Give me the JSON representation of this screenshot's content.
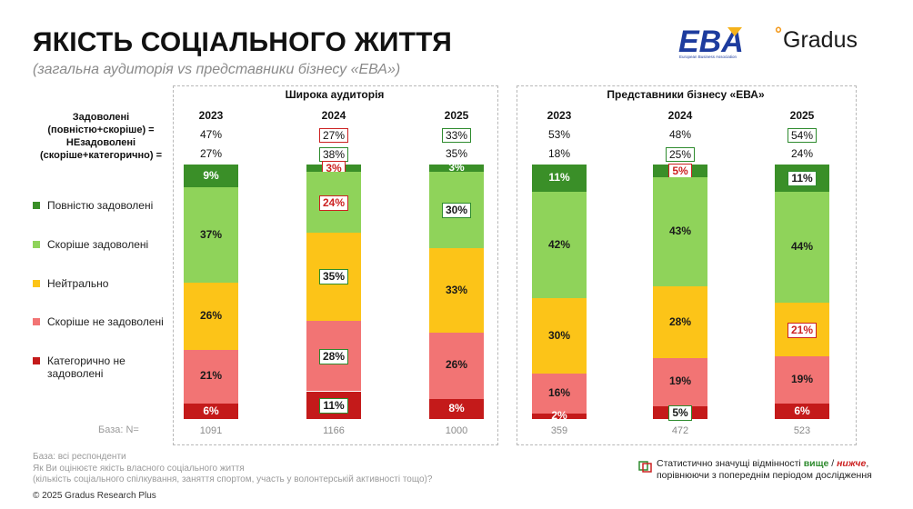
{
  "header": {
    "title": "ЯКІСТЬ СОЦІАЛЬНОГО ЖИТТЯ",
    "subtitle": "(загальна аудиторія vs представники бізнесу «ЕВА»)",
    "eba_logo_text": "EBA",
    "eba_logo_caption": "European Business Association",
    "gradus_logo_text": "Gradus"
  },
  "row_labels": {
    "satisfied": "Задоволені (повністю+скоріше) =",
    "dissatisfied": "НЕзадоволені (скоріше+категорично) ="
  },
  "legend": [
    {
      "label": "Повністю задоволені",
      "color": "#3a8f28"
    },
    {
      "label": "Скоріше задоволені",
      "color": "#8fd35a"
    },
    {
      "label": "Нейтрально",
      "color": "#fcc418"
    },
    {
      "label": "Скоріше не задоволені",
      "color": "#f27474"
    },
    {
      "label": "Категорично не задоволені",
      "color": "#c41a1a"
    }
  ],
  "base_label": "База: N=",
  "footnotes": {
    "base": "База: всі респонденти",
    "question": "Як Ви оцінюєте якість власного соціального життя",
    "clarification": "(кількість соціального спілкування, заняття спортом, участь у волонтерській активності тощо)?",
    "copyright": "© 2025 Gradus Research Plus"
  },
  "significance_legend": {
    "prefix": "Статистично значущі відмінності",
    "higher": "вище",
    "separator": "/",
    "lower": "нижче",
    "suffix": "порівнюючи з попереднім періодом дослідження"
  },
  "chart_data": {
    "type": "bar",
    "stacked": true,
    "series_order": [
      "Повністю задоволені",
      "Скоріше задоволені",
      "Нейтрально",
      "Скоріше не задоволені",
      "Категорично не задоволені"
    ],
    "groups": [
      {
        "title": "Широка аудиторія",
        "bars": [
          {
            "year": "2023",
            "satisfied": "47%",
            "dissatisfied": "27%",
            "satisfied_sig": "",
            "dissatisfied_sig": "",
            "values": [
              9,
              37,
              26,
              21,
              6
            ],
            "sig": [
              "",
              "",
              "",
              "",
              ""
            ],
            "base": "1091"
          },
          {
            "year": "2024",
            "satisfied": "27%",
            "dissatisfied": "38%",
            "satisfied_sig": "lower",
            "dissatisfied_sig": "higher",
            "values": [
              3,
              24,
              35,
              28,
              11
            ],
            "sig": [
              "lower",
              "lower",
              "higher",
              "higher",
              "higher"
            ],
            "base": "1166"
          },
          {
            "year": "2025",
            "satisfied": "33%",
            "dissatisfied": "35%",
            "satisfied_sig": "higher",
            "dissatisfied_sig": "",
            "values": [
              3,
              30,
              33,
              26,
              8
            ],
            "sig": [
              "",
              "higher",
              "",
              "",
              ""
            ],
            "base": "1000"
          }
        ]
      },
      {
        "title": "Представники бізнесу «ЕВА»",
        "bars": [
          {
            "year": "2023",
            "satisfied": "53%",
            "dissatisfied": "18%",
            "satisfied_sig": "",
            "dissatisfied_sig": "",
            "values": [
              11,
              42,
              30,
              16,
              2
            ],
            "sig": [
              "",
              "",
              "",
              "",
              ""
            ],
            "base": "359"
          },
          {
            "year": "2024",
            "satisfied": "48%",
            "dissatisfied": "25%",
            "satisfied_sig": "",
            "dissatisfied_sig": "higher",
            "values": [
              5,
              43,
              28,
              19,
              5
            ],
            "sig": [
              "lower",
              "",
              "",
              "",
              "higher"
            ],
            "base": "472"
          },
          {
            "year": "2025",
            "satisfied": "54%",
            "dissatisfied": "24%",
            "satisfied_sig": "higher",
            "dissatisfied_sig": "",
            "values": [
              11,
              44,
              21,
              19,
              6
            ],
            "sig": [
              "higher",
              "",
              "lower",
              "",
              ""
            ],
            "base": "523"
          }
        ]
      }
    ]
  }
}
